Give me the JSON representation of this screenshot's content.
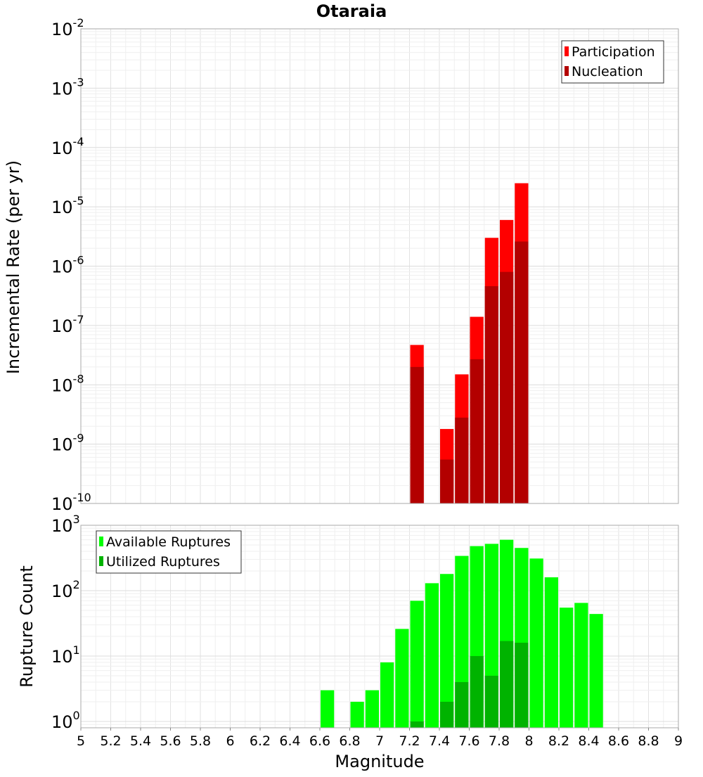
{
  "chart_data": {
    "type": "bar",
    "title": "Otaraia",
    "xlabel": "Magnitude",
    "xlim": [
      5,
      9
    ],
    "xticks": [
      "5",
      "5.2",
      "5.4",
      "5.6",
      "5.8",
      "6",
      "6.2",
      "6.4",
      "6.6",
      "6.8",
      "7",
      "7.2",
      "7.4",
      "7.6",
      "7.8",
      "8",
      "8.2",
      "8.4",
      "8.6",
      "8.8",
      "9"
    ],
    "bin_width": 0.1,
    "grid": true,
    "panels": [
      {
        "id": "rate",
        "ylabel": "Incremental Rate (per yr)",
        "yscale": "log",
        "ylim": [
          1e-10,
          0.01
        ],
        "ytick_exponents": [
          "-10",
          "-9",
          "-8",
          "-7",
          "-6",
          "-5",
          "-4",
          "-3",
          "-2"
        ],
        "legend_position": "top-right",
        "series": [
          {
            "name": "Participation",
            "color": "#ff0000",
            "points": [
              {
                "x": 7.25,
                "y": 4.7e-08
              },
              {
                "x": 7.45,
                "y": 1.8e-09
              },
              {
                "x": 7.55,
                "y": 1.5e-08
              },
              {
                "x": 7.65,
                "y": 1.4e-07
              },
              {
                "x": 7.75,
                "y": 3e-06
              },
              {
                "x": 7.85,
                "y": 6e-06
              },
              {
                "x": 7.95,
                "y": 2.5e-05
              }
            ]
          },
          {
            "name": "Nucleation",
            "color": "#b30000",
            "points": [
              {
                "x": 7.25,
                "y": 2e-08
              },
              {
                "x": 7.45,
                "y": 5.5e-10
              },
              {
                "x": 7.55,
                "y": 2.8e-09
              },
              {
                "x": 7.65,
                "y": 2.7e-08
              },
              {
                "x": 7.75,
                "y": 4.6e-07
              },
              {
                "x": 7.85,
                "y": 8e-07
              },
              {
                "x": 7.95,
                "y": 2.6e-06
              }
            ]
          }
        ]
      },
      {
        "id": "count",
        "ylabel": "Rupture Count",
        "yscale": "log",
        "ylim": [
          0.8,
          1000
        ],
        "ytick_exponents": [
          "0",
          "1",
          "2",
          "3"
        ],
        "legend_position": "top-left",
        "series": [
          {
            "name": "Available Ruptures",
            "color": "#00ff00",
            "points": [
              {
                "x": 6.65,
                "y": 3
              },
              {
                "x": 6.85,
                "y": 2
              },
              {
                "x": 6.95,
                "y": 3
              },
              {
                "x": 7.05,
                "y": 8
              },
              {
                "x": 7.15,
                "y": 26
              },
              {
                "x": 7.25,
                "y": 70
              },
              {
                "x": 7.35,
                "y": 130
              },
              {
                "x": 7.45,
                "y": 180
              },
              {
                "x": 7.55,
                "y": 340
              },
              {
                "x": 7.65,
                "y": 480
              },
              {
                "x": 7.75,
                "y": 520
              },
              {
                "x": 7.85,
                "y": 600
              },
              {
                "x": 7.95,
                "y": 450
              },
              {
                "x": 8.05,
                "y": 310
              },
              {
                "x": 8.15,
                "y": 160
              },
              {
                "x": 8.25,
                "y": 55
              },
              {
                "x": 8.35,
                "y": 65
              },
              {
                "x": 8.45,
                "y": 44
              }
            ]
          },
          {
            "name": "Utilized Ruptures",
            "color": "#00b300",
            "points": [
              {
                "x": 7.25,
                "y": 1
              },
              {
                "x": 7.45,
                "y": 2
              },
              {
                "x": 7.55,
                "y": 4
              },
              {
                "x": 7.65,
                "y": 10
              },
              {
                "x": 7.75,
                "y": 5
              },
              {
                "x": 7.85,
                "y": 17
              },
              {
                "x": 7.95,
                "y": 16
              }
            ]
          }
        ]
      }
    ]
  }
}
